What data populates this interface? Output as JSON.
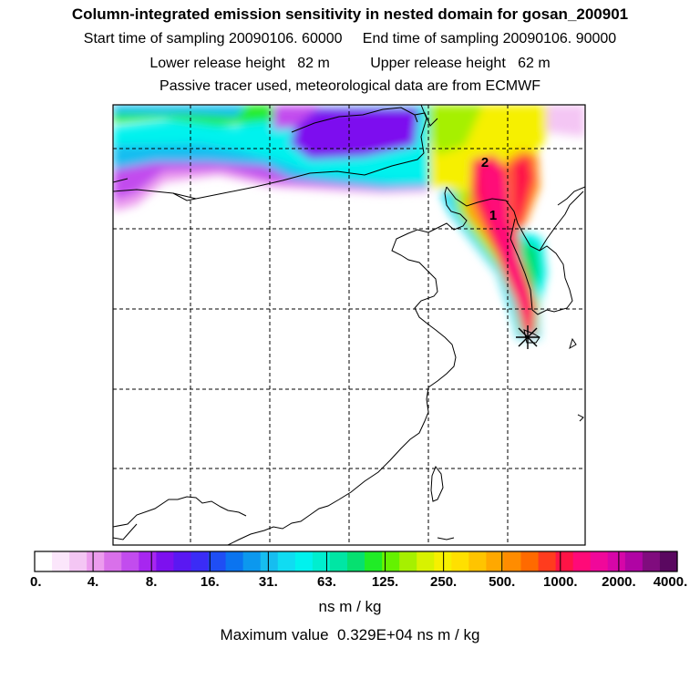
{
  "header": {
    "title": "Column-integrated emission sensitivity in nested domain for gosan_200901",
    "sampling_line": "Start time of sampling 20090106. 60000     End time of sampling 20090106. 90000",
    "release_line": "Lower release height   82 m          Upper release height   62 m",
    "tracer_line": "Passive tracer used, meteorological data are from ECMWF"
  },
  "map": {
    "markers": [
      {
        "label": "1"
      },
      {
        "label": "2"
      }
    ],
    "receptor_icon": "asterisk-receptor-icon"
  },
  "legend": {
    "tick_labels": [
      "0.",
      "4.",
      "8.",
      "16.",
      "31.",
      "63.",
      "125.",
      "250.",
      "500.",
      "1000.",
      "2000.",
      "4000."
    ],
    "colors": [
      "#ffffff",
      "#fbe6fb",
      "#f4c6f4",
      "#ec9cee",
      "#d970ea",
      "#c24cee",
      "#a726f0",
      "#7d10ef",
      "#5a18f2",
      "#3b2cf6",
      "#1f4ef4",
      "#0b74f0",
      "#0c98ee",
      "#16bdf0",
      "#10dcf2",
      "#00f2ee",
      "#00eecf",
      "#00e6a4",
      "#06e070",
      "#20ec26",
      "#64f200",
      "#a6f000",
      "#d8f200",
      "#f6f000",
      "#ffe000",
      "#ffc400",
      "#ffa800",
      "#ff8c00",
      "#ff6a00",
      "#ff3c1e",
      "#ff1446",
      "#ff0a78",
      "#f0089a",
      "#d606a8",
      "#b004a4",
      "#800c7e",
      "#5a0860"
    ],
    "units": "ns m / kg",
    "max_value": "Maximum value  0.329E+04 ns m / kg"
  }
}
